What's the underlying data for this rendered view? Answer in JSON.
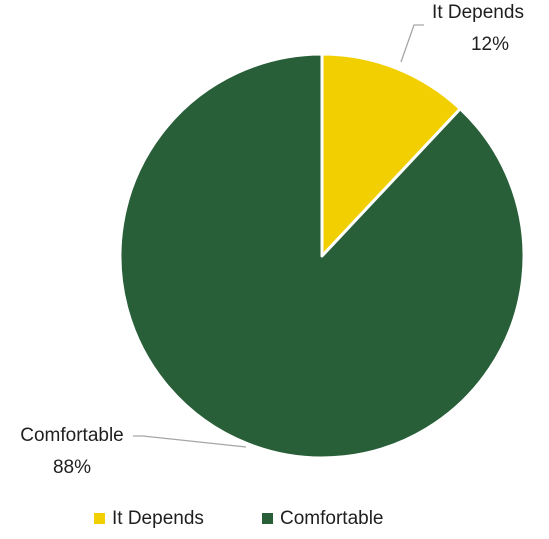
{
  "chart_data": {
    "type": "pie",
    "title": "",
    "slices": [
      {
        "name": "It Depends",
        "value": 12,
        "label": "12%",
        "color": "#F2CF00"
      },
      {
        "name": "Comfortable",
        "value": 88,
        "label": "88%",
        "color": "#285E38"
      }
    ],
    "legend": {
      "position": "bottom",
      "items": [
        "It Depends",
        "Comfortable"
      ]
    },
    "start_angle_deg": 0,
    "direction": "clockwise"
  }
}
